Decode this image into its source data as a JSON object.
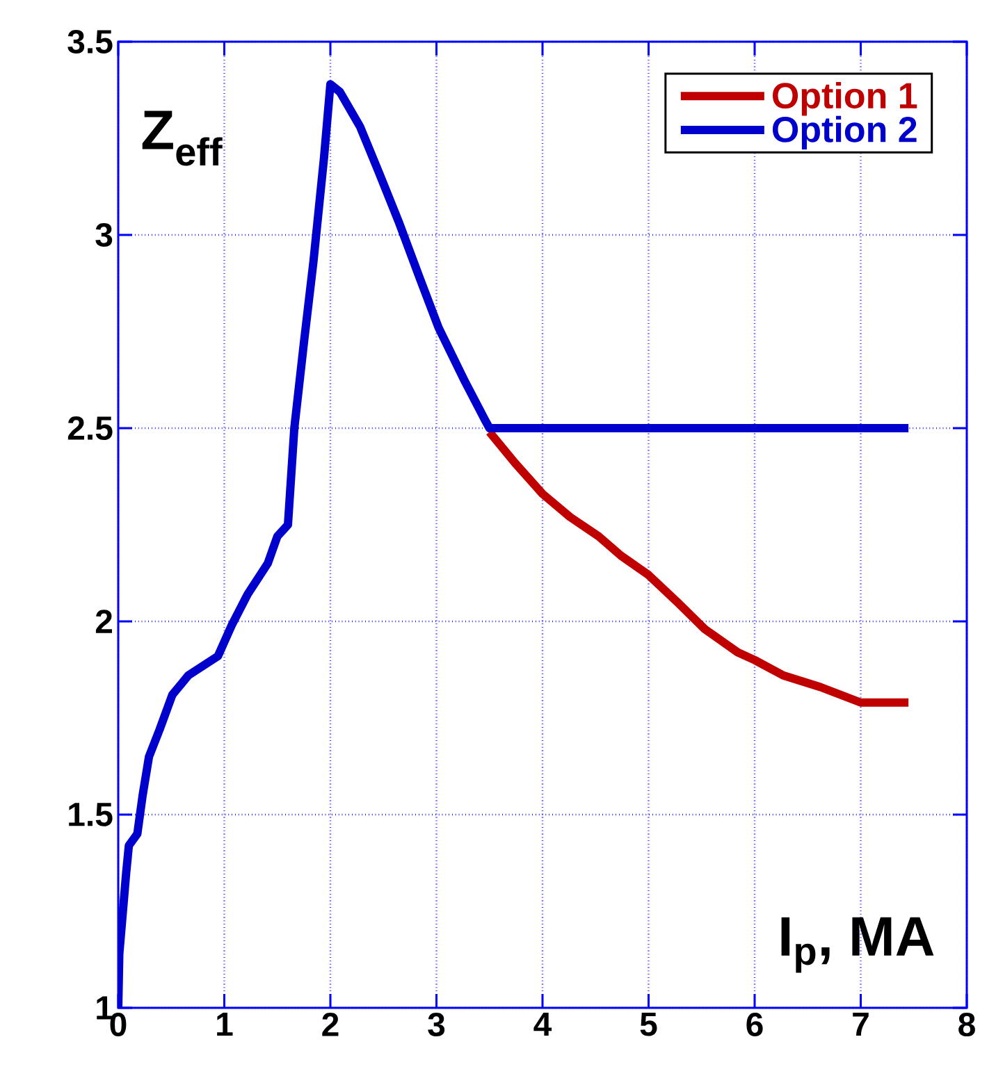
{
  "chart_data": {
    "type": "line",
    "xlabel": "I$_{p}$, MA",
    "ylabel": "Z$_{eff}$",
    "xlim": [
      0,
      8
    ],
    "ylim": [
      1,
      3.5
    ],
    "xticks": [
      0,
      1,
      2,
      3,
      4,
      5,
      6,
      7,
      8
    ],
    "yticks": [
      1,
      1.5,
      2,
      2.5,
      3,
      3.5
    ],
    "grid": true,
    "legend": "top right",
    "series": [
      {
        "name": "Option 1",
        "color": "#c00000",
        "x": [
          3.5,
          3.74,
          4.0,
          4.26,
          4.53,
          4.74,
          5.0,
          5.27,
          5.53,
          5.84,
          6.0,
          6.27,
          6.62,
          7.0,
          7.45
        ],
        "values": [
          2.49,
          2.41,
          2.33,
          2.27,
          2.22,
          2.17,
          2.12,
          2.05,
          1.98,
          1.92,
          1.9,
          1.86,
          1.83,
          1.79,
          1.79
        ]
      },
      {
        "name": "Option 2",
        "color": "#0000cc",
        "x": [
          0,
          0.01,
          0.075,
          0.1,
          0.18,
          0.23,
          0.29,
          0.39,
          0.51,
          0.66,
          0.94,
          1.07,
          1.22,
          1.41,
          1.5,
          1.6,
          1.66,
          1.75,
          1.84,
          1.94,
          2.0,
          2.09,
          2.28,
          2.46,
          2.65,
          2.84,
          3.02,
          3.27,
          3.46,
          3.5,
          7.45
        ],
        "values": [
          1.0,
          1.14,
          1.35,
          1.42,
          1.45,
          1.55,
          1.65,
          1.72,
          1.81,
          1.86,
          1.91,
          1.99,
          2.07,
          2.15,
          2.22,
          2.25,
          2.5,
          2.72,
          2.93,
          3.2,
          3.39,
          3.37,
          3.28,
          3.16,
          3.03,
          2.89,
          2.76,
          2.62,
          2.52,
          2.5,
          2.5
        ]
      }
    ]
  }
}
